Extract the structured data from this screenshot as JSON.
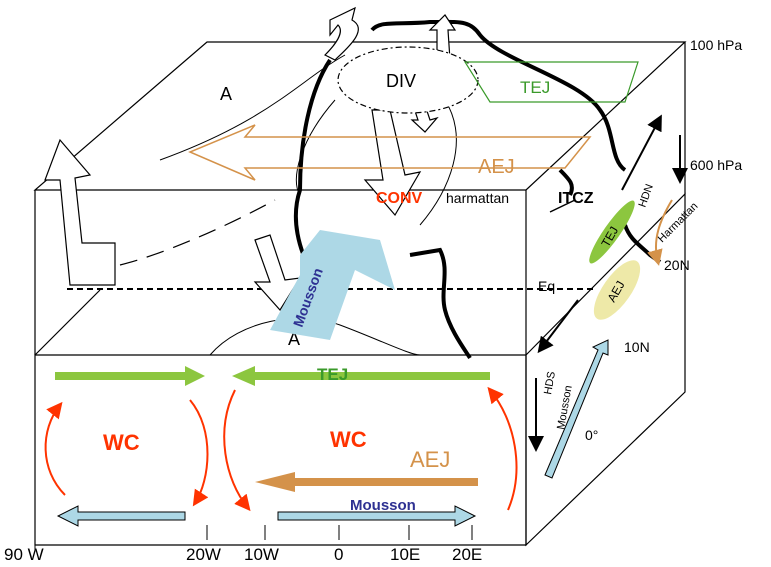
{
  "colors": {
    "tej_green": "#8cc63f",
    "aej_orange": "#d4924a",
    "wc_red": "#ff3300",
    "mousson_blue": "#add8e6",
    "mousson_text": "#2e3192",
    "aej_fill": "#eee9a8"
  },
  "labels": {
    "div": "DIV",
    "a_top": "A",
    "a_bottom": "A",
    "tej_top": "TEJ",
    "aej_top": "AEJ",
    "conv": "CONV",
    "harmattan_top": "harmattan",
    "itcz": "ITCZ",
    "eq": "Eq",
    "mousson_big": "Mousson",
    "tej_front": "TEJ",
    "wc_left": "WC",
    "wc_right": "WC",
    "aej_front": "AEJ",
    "mousson_front": "Mousson",
    "p_100": "100 hPa",
    "p_600": "600 hPa",
    "hdn": "HDN",
    "harmattan_side": "Harmattan",
    "tej_side": "TEJ",
    "aej_side": "AEJ",
    "lat_20n": "20N",
    "lat_10n": "10N",
    "lat_0": "0°",
    "hds": "HDS",
    "mousson_side1": "Mousson",
    "mousson_side2": "Mousson"
  },
  "x_axis": [
    "90 W",
    "20W",
    "10W",
    "0",
    "10E",
    "20E"
  ]
}
